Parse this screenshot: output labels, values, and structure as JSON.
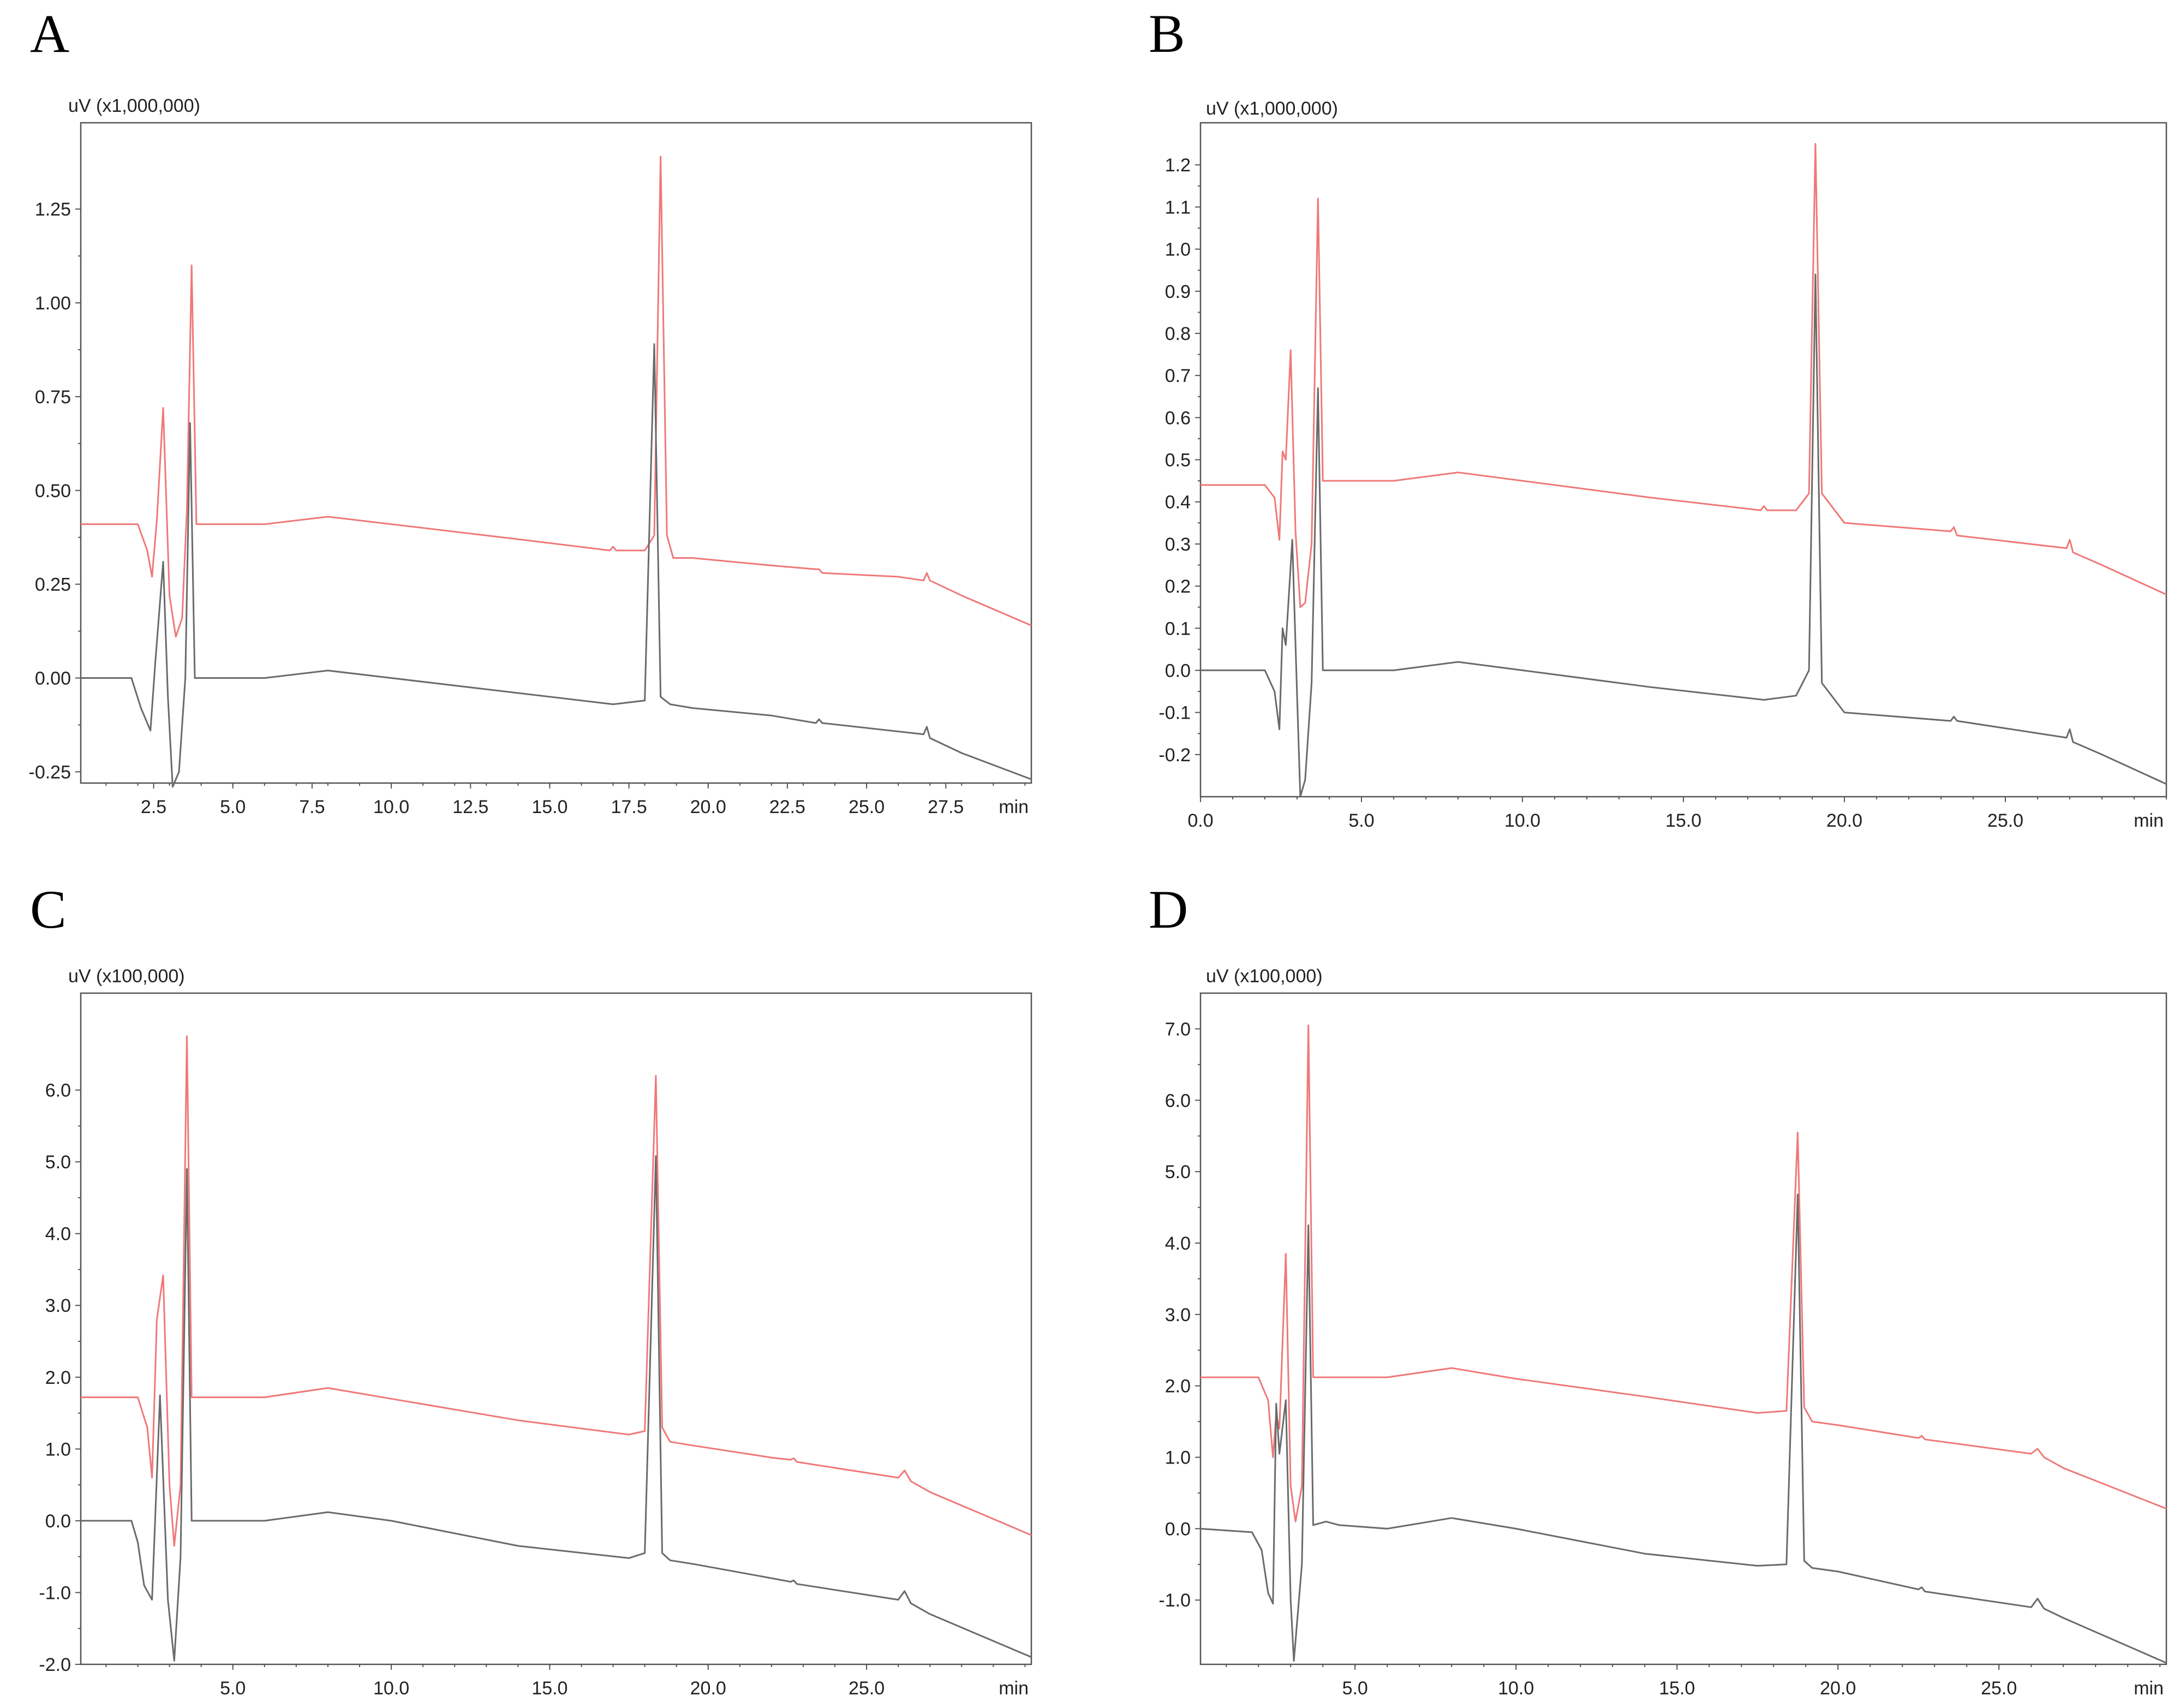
{
  "colors": {
    "red_trace": "#f07878",
    "black_trace": "#6a6a6a",
    "frame": "#555555"
  },
  "chart_data": [
    {
      "panel": "A",
      "type": "line",
      "title": "",
      "ylabel": "uV (x1,000,000)",
      "xlabel": "min",
      "xlim": [
        0.2,
        30.2
      ],
      "ylim": [
        -0.28,
        1.48
      ],
      "xticks": [
        2.5,
        5.0,
        7.5,
        10.0,
        12.5,
        15.0,
        17.5,
        20.0,
        22.5,
        25.0,
        27.5
      ],
      "xtick_labels": [
        "2.5",
        "5.0",
        "7.5",
        "10.0",
        "12.5",
        "15.0",
        "17.5",
        "20.0",
        "22.5",
        "25.0",
        "27.5"
      ],
      "yticks": [
        -0.25,
        0.0,
        0.25,
        0.5,
        0.75,
        1.0,
        1.25
      ],
      "ytick_labels": [
        "-0.25",
        "0.00",
        "0.25",
        "0.50",
        "0.75",
        "1.00",
        "1.25"
      ],
      "series": [
        {
          "name": "red",
          "x": [
            0.2,
            2.0,
            2.3,
            2.45,
            2.6,
            2.8,
            3.0,
            3.2,
            3.4,
            3.55,
            3.7,
            3.85,
            4.5,
            6.0,
            8.0,
            10.0,
            14.0,
            16.9,
            17.0,
            17.1,
            18.0,
            18.3,
            18.5,
            18.7,
            18.9,
            19.5,
            22.0,
            23.4,
            23.5,
            23.6,
            26.0,
            26.8,
            26.9,
            27.0,
            28.0,
            30.2
          ],
          "y": [
            0.41,
            0.41,
            0.34,
            0.27,
            0.42,
            0.72,
            0.22,
            0.11,
            0.16,
            0.45,
            1.1,
            0.41,
            0.41,
            0.41,
            0.43,
            0.41,
            0.37,
            0.34,
            0.35,
            0.34,
            0.34,
            0.38,
            1.39,
            0.38,
            0.32,
            0.32,
            0.3,
            0.29,
            0.29,
            0.28,
            0.27,
            0.26,
            0.28,
            0.26,
            0.22,
            0.14
          ]
        },
        {
          "name": "black",
          "x": [
            0.2,
            1.8,
            2.1,
            2.4,
            2.55,
            2.8,
            2.95,
            3.1,
            3.3,
            3.5,
            3.65,
            3.8,
            4.5,
            6.0,
            8.0,
            10.0,
            14.0,
            17.0,
            18.0,
            18.3,
            18.5,
            18.8,
            19.5,
            22.0,
            23.4,
            23.5,
            23.6,
            26.8,
            26.9,
            27.0,
            28.0,
            30.2
          ],
          "y": [
            0.0,
            0.0,
            -0.08,
            -0.14,
            0.04,
            0.31,
            -0.05,
            -0.29,
            -0.25,
            0.0,
            0.68,
            0.0,
            0.0,
            0.0,
            0.02,
            0.0,
            -0.04,
            -0.07,
            -0.06,
            0.89,
            -0.05,
            -0.07,
            -0.08,
            -0.1,
            -0.12,
            -0.11,
            -0.12,
            -0.15,
            -0.13,
            -0.16,
            -0.2,
            -0.27
          ]
        }
      ]
    },
    {
      "panel": "B",
      "type": "line",
      "title": "",
      "ylabel": "uV (x1,000,000)",
      "xlabel": "min",
      "xlim": [
        0.0,
        30.0
      ],
      "ylim": [
        -0.3,
        1.3
      ],
      "xticks": [
        0.0,
        5.0,
        10.0,
        15.0,
        20.0,
        25.0
      ],
      "xtick_labels": [
        "0.0",
        "5.0",
        "10.0",
        "15.0",
        "20.0",
        "25.0"
      ],
      "yticks": [
        -0.2,
        -0.1,
        0.0,
        0.1,
        0.2,
        0.3,
        0.4,
        0.5,
        0.6,
        0.7,
        0.8,
        0.9,
        1.0,
        1.1,
        1.2
      ],
      "ytick_labels": [
        "-0.2",
        "-0.1",
        "0.0",
        "0.1",
        "0.2",
        "0.3",
        "0.4",
        "0.5",
        "0.6",
        "0.7",
        "0.8",
        "0.9",
        "1.0",
        "1.1",
        "1.2"
      ],
      "series": [
        {
          "name": "red",
          "x": [
            0.0,
            2.0,
            2.3,
            2.45,
            2.55,
            2.65,
            2.8,
            2.95,
            3.1,
            3.25,
            3.45,
            3.65,
            3.8,
            4.5,
            6.0,
            8.0,
            10.0,
            14.0,
            17.4,
            17.5,
            17.6,
            18.5,
            18.9,
            19.1,
            19.3,
            20.0,
            23.3,
            23.4,
            23.5,
            26.9,
            27.0,
            27.1,
            28.0,
            30.0
          ],
          "y": [
            0.44,
            0.44,
            0.41,
            0.31,
            0.52,
            0.5,
            0.76,
            0.33,
            0.15,
            0.16,
            0.3,
            1.12,
            0.45,
            0.45,
            0.45,
            0.47,
            0.45,
            0.41,
            0.38,
            0.39,
            0.38,
            0.38,
            0.42,
            1.25,
            0.42,
            0.35,
            0.33,
            0.34,
            0.32,
            0.29,
            0.31,
            0.28,
            0.25,
            0.18
          ]
        },
        {
          "name": "black",
          "x": [
            0.0,
            2.0,
            2.3,
            2.45,
            2.55,
            2.65,
            2.85,
            3.0,
            3.1,
            3.25,
            3.45,
            3.65,
            3.8,
            4.5,
            6.0,
            8.0,
            10.0,
            14.0,
            17.5,
            18.5,
            18.9,
            19.1,
            19.3,
            20.0,
            23.3,
            23.4,
            23.5,
            26.9,
            27.0,
            27.1,
            28.0,
            30.0
          ],
          "y": [
            0.0,
            0.0,
            -0.05,
            -0.14,
            0.1,
            0.06,
            0.31,
            -0.06,
            -0.3,
            -0.26,
            -0.03,
            0.67,
            0.0,
            0.0,
            0.0,
            0.02,
            0.0,
            -0.04,
            -0.07,
            -0.06,
            0.0,
            0.94,
            -0.03,
            -0.1,
            -0.12,
            -0.11,
            -0.12,
            -0.16,
            -0.14,
            -0.17,
            -0.2,
            -0.27
          ]
        }
      ]
    },
    {
      "panel": "C",
      "type": "line",
      "title": "",
      "ylabel": "uV (x100,000)",
      "xlabel": "min",
      "xlim": [
        0.2,
        30.2
      ],
      "ylim": [
        -2.0,
        7.35
      ],
      "xticks": [
        5.0,
        10.0,
        15.0,
        20.0,
        25.0
      ],
      "xtick_labels": [
        "5.0",
        "10.0",
        "15.0",
        "20.0",
        "25.0"
      ],
      "yticks": [
        -2.0,
        -1.0,
        0.0,
        1.0,
        2.0,
        3.0,
        4.0,
        5.0,
        6.0
      ],
      "ytick_labels": [
        "-2.0",
        "-1.0",
        "0.0",
        "1.0",
        "2.0",
        "3.0",
        "4.0",
        "5.0",
        "6.0"
      ],
      "series": [
        {
          "name": "red",
          "x": [
            0.2,
            2.0,
            2.3,
            2.45,
            2.6,
            2.8,
            3.0,
            3.15,
            3.35,
            3.55,
            3.7,
            4.5,
            6.0,
            8.0,
            10.0,
            14.0,
            17.5,
            18.0,
            18.35,
            18.55,
            18.8,
            19.5,
            22.0,
            22.6,
            22.7,
            22.8,
            26.0,
            26.2,
            26.4,
            27.0,
            30.2
          ],
          "y": [
            1.72,
            1.72,
            1.3,
            0.6,
            2.8,
            3.42,
            0.5,
            -0.35,
            0.5,
            6.75,
            1.72,
            1.72,
            1.72,
            1.85,
            1.7,
            1.4,
            1.2,
            1.25,
            6.2,
            1.3,
            1.1,
            1.05,
            0.88,
            0.85,
            0.87,
            0.82,
            0.6,
            0.7,
            0.55,
            0.4,
            -0.2
          ]
        },
        {
          "name": "black",
          "x": [
            0.2,
            1.8,
            2.0,
            2.2,
            2.45,
            2.7,
            2.95,
            3.15,
            3.35,
            3.55,
            3.7,
            4.5,
            6.0,
            8.0,
            10.0,
            14.0,
            17.5,
            18.0,
            18.35,
            18.55,
            18.8,
            19.5,
            22.0,
            22.6,
            22.7,
            22.8,
            26.0,
            26.2,
            26.4,
            27.0,
            30.2
          ],
          "y": [
            0.0,
            0.0,
            -0.3,
            -0.9,
            -1.1,
            1.75,
            -1.1,
            -1.95,
            -0.5,
            4.9,
            0.0,
            0.0,
            0.0,
            0.12,
            0.0,
            -0.35,
            -0.52,
            -0.45,
            5.08,
            -0.45,
            -0.55,
            -0.6,
            -0.8,
            -0.85,
            -0.83,
            -0.88,
            -1.1,
            -0.98,
            -1.15,
            -1.3,
            -1.9
          ]
        }
      ]
    },
    {
      "panel": "D",
      "type": "line",
      "title": "",
      "ylabel": "uV (x100,000)",
      "xlabel": "min",
      "xlim": [
        0.2,
        30.2
      ],
      "ylim": [
        -1.9,
        7.5
      ],
      "xticks": [
        5.0,
        10.0,
        15.0,
        20.0,
        25.0
      ],
      "xtick_labels": [
        "5.0",
        "10.0",
        "15.0",
        "20.0",
        "25.0"
      ],
      "yticks": [
        -1.0,
        0.0,
        1.0,
        2.0,
        3.0,
        4.0,
        5.0,
        6.0,
        7.0
      ],
      "ytick_labels": [
        "-1.0",
        "0.0",
        "1.0",
        "2.0",
        "3.0",
        "4.0",
        "5.0",
        "6.0",
        "7.0"
      ],
      "series": [
        {
          "name": "red",
          "x": [
            0.2,
            2.0,
            2.3,
            2.45,
            2.55,
            2.65,
            2.85,
            3.0,
            3.15,
            3.35,
            3.55,
            3.7,
            4.5,
            6.0,
            8.0,
            10.0,
            14.0,
            17.5,
            18.4,
            18.75,
            18.95,
            19.2,
            20.0,
            22.5,
            22.6,
            22.7,
            26.0,
            26.2,
            26.4,
            27.0,
            30.2
          ],
          "y": [
            2.12,
            2.12,
            1.8,
            1.0,
            1.6,
            1.4,
            3.85,
            0.6,
            0.1,
            0.6,
            7.05,
            2.12,
            2.12,
            2.12,
            2.25,
            2.1,
            1.85,
            1.62,
            1.65,
            5.55,
            1.7,
            1.5,
            1.45,
            1.27,
            1.3,
            1.25,
            1.05,
            1.12,
            1.0,
            0.85,
            0.28
          ]
        },
        {
          "name": "black",
          "x": [
            0.2,
            1.8,
            2.1,
            2.3,
            2.45,
            2.55,
            2.65,
            2.85,
            3.0,
            3.1,
            3.35,
            3.55,
            3.7,
            4.1,
            4.5,
            6.0,
            8.0,
            10.0,
            14.0,
            17.5,
            18.4,
            18.75,
            18.95,
            19.2,
            20.0,
            22.5,
            22.6,
            22.7,
            26.0,
            26.2,
            26.4,
            27.0,
            30.2
          ],
          "y": [
            0.0,
            -0.05,
            -0.3,
            -0.9,
            -1.05,
            1.75,
            1.05,
            1.8,
            -1.0,
            -1.85,
            -0.5,
            4.25,
            0.05,
            0.1,
            0.05,
            0.0,
            0.15,
            0.0,
            -0.35,
            -0.52,
            -0.5,
            4.68,
            -0.45,
            -0.55,
            -0.6,
            -0.85,
            -0.82,
            -0.88,
            -1.1,
            -0.98,
            -1.12,
            -1.25,
            -1.88
          ]
        }
      ]
    }
  ]
}
